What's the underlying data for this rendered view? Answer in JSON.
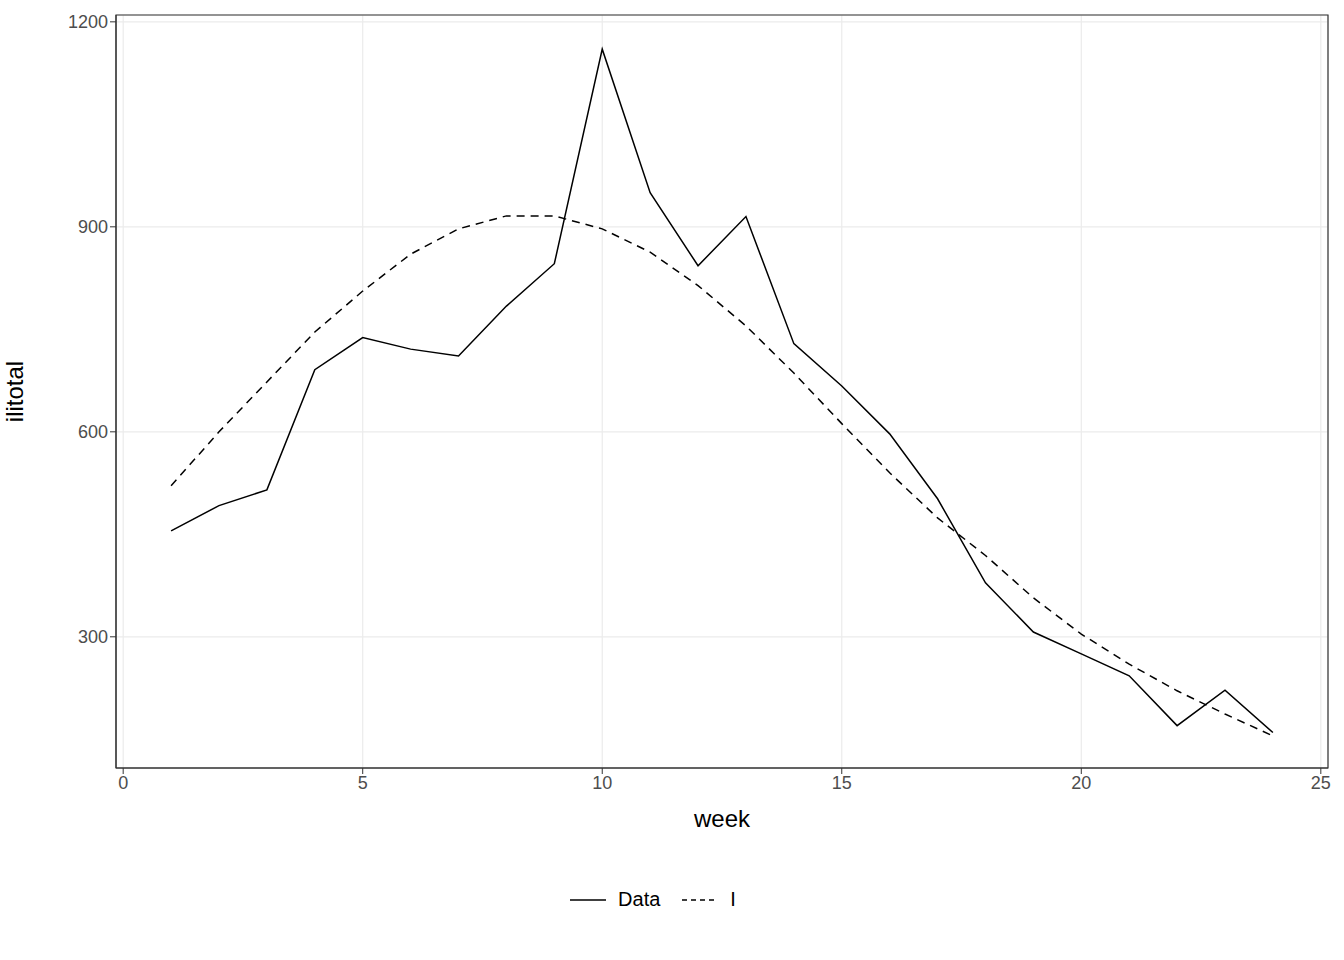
{
  "chart_data": {
    "type": "line",
    "x_label": "week",
    "y_label": "ilitotal",
    "x": [
      1,
      2,
      3,
      4,
      5,
      6,
      7,
      8,
      9,
      10,
      11,
      12,
      13,
      14,
      15,
      16,
      17,
      18,
      19,
      20,
      21,
      22,
      23,
      24
    ],
    "series": [
      {
        "name": "Data",
        "color": "#000000",
        "line_style": "solid",
        "values": [
          455,
          492,
          515,
          691,
          738,
          721,
          711,
          784,
          846,
          1160,
          950,
          843,
          915,
          729,
          667,
          597,
          502,
          379,
          307,
          275,
          243,
          170,
          222,
          160
        ]
      },
      {
        "name": "I",
        "color": "#000000",
        "line_style": "dashed",
        "values": [
          521,
          600,
          673,
          746,
          806,
          860,
          897,
          916,
          916,
          897,
          863,
          814,
          755,
          686,
          612,
          540,
          474,
          419,
          357,
          304,
          260,
          221,
          187,
          155
        ]
      }
    ],
    "xlim": [
      -0.15,
      25.15
    ],
    "ylim": [
      108,
      1210
    ],
    "xticks": [
      0,
      5,
      10,
      15,
      20,
      25
    ],
    "yticks": [
      300,
      600,
      900,
      1200
    ],
    "grid": true,
    "legend": "bottom"
  }
}
